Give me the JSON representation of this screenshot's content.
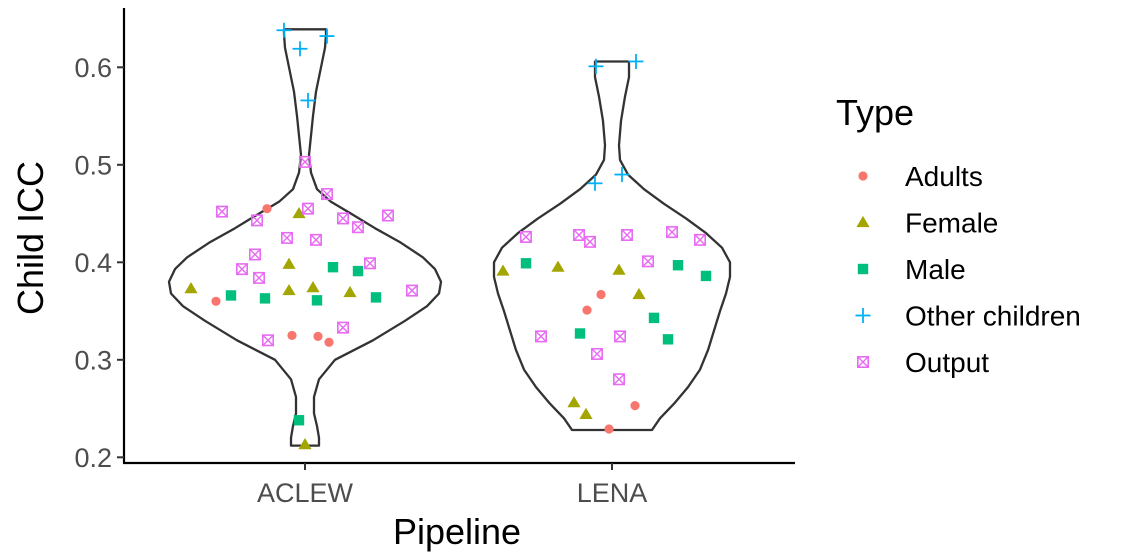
{
  "chart_data": {
    "type": "violin",
    "xlabel": "Pipeline",
    "ylabel": "Child ICC",
    "categories": [
      "ACLEW",
      "LENA"
    ],
    "ylim": [
      0.19,
      0.665
    ],
    "yticks": [
      0.2,
      0.3,
      0.4,
      0.5,
      0.6
    ],
    "ytick_labels": [
      "0.2",
      "0.3",
      "0.4",
      "0.5",
      "0.6"
    ],
    "legend": {
      "title": "Type",
      "position": "right",
      "entries": [
        {
          "name": "Adults",
          "color": "#F8766D",
          "shape": "circle"
        },
        {
          "name": "Female",
          "color": "#A3A500",
          "shape": "triangle"
        },
        {
          "name": "Male",
          "color": "#00BF7D",
          "shape": "square"
        },
        {
          "name": "Other children",
          "color": "#00B0F6",
          "shape": "plus"
        },
        {
          "name": "Output",
          "color": "#E76BF3",
          "shape": "boxcross"
        }
      ]
    },
    "violins": [
      {
        "category": "ACLEW",
        "ymin": 0.212,
        "ymax": 0.639
      },
      {
        "category": "LENA",
        "ymin": 0.228,
        "ymax": 0.606
      }
    ],
    "points": {
      "Adults": [
        {
          "x": "ACLEW",
          "y": 0.36
        },
        {
          "x": "ACLEW",
          "y": 0.455
        },
        {
          "x": "ACLEW",
          "y": 0.325
        },
        {
          "x": "ACLEW",
          "y": 0.324
        },
        {
          "x": "ACLEW",
          "y": 0.318
        },
        {
          "x": "LENA",
          "y": 0.351
        },
        {
          "x": "LENA",
          "y": 0.367
        },
        {
          "x": "LENA",
          "y": 0.253
        },
        {
          "x": "LENA",
          "y": 0.229
        }
      ],
      "Female": [
        {
          "x": "ACLEW",
          "y": 0.373
        },
        {
          "x": "ACLEW",
          "y": 0.45
        },
        {
          "x": "ACLEW",
          "y": 0.398
        },
        {
          "x": "ACLEW",
          "y": 0.371
        },
        {
          "x": "ACLEW",
          "y": 0.374
        },
        {
          "x": "ACLEW",
          "y": 0.369
        },
        {
          "x": "ACLEW",
          "y": 0.213
        },
        {
          "x": "LENA",
          "y": 0.391
        },
        {
          "x": "LENA",
          "y": 0.395
        },
        {
          "x": "LENA",
          "y": 0.392
        },
        {
          "x": "LENA",
          "y": 0.367
        },
        {
          "x": "LENA",
          "y": 0.256
        },
        {
          "x": "LENA",
          "y": 0.244
        }
      ],
      "Male": [
        {
          "x": "ACLEW",
          "y": 0.366
        },
        {
          "x": "ACLEW",
          "y": 0.363
        },
        {
          "x": "ACLEW",
          "y": 0.361
        },
        {
          "x": "ACLEW",
          "y": 0.395
        },
        {
          "x": "ACLEW",
          "y": 0.391
        },
        {
          "x": "ACLEW",
          "y": 0.364
        },
        {
          "x": "ACLEW",
          "y": 0.238
        },
        {
          "x": "LENA",
          "y": 0.399
        },
        {
          "x": "LENA",
          "y": 0.327
        },
        {
          "x": "LENA",
          "y": 0.343
        },
        {
          "x": "LENA",
          "y": 0.321
        },
        {
          "x": "LENA",
          "y": 0.397
        },
        {
          "x": "LENA",
          "y": 0.386
        }
      ],
      "Other children": [
        {
          "x": "ACLEW",
          "y": 0.638
        },
        {
          "x": "ACLEW",
          "y": 0.619
        },
        {
          "x": "ACLEW",
          "y": 0.632
        },
        {
          "x": "ACLEW",
          "y": 0.566
        },
        {
          "x": "LENA",
          "y": 0.601
        },
        {
          "x": "LENA",
          "y": 0.606
        },
        {
          "x": "LENA",
          "y": 0.481
        },
        {
          "x": "LENA",
          "y": 0.49
        }
      ],
      "Output": [
        {
          "x": "ACLEW",
          "y": 0.452
        },
        {
          "x": "ACLEW",
          "y": 0.503
        },
        {
          "x": "ACLEW",
          "y": 0.443
        },
        {
          "x": "ACLEW",
          "y": 0.455
        },
        {
          "x": "ACLEW",
          "y": 0.47
        },
        {
          "x": "ACLEW",
          "y": 0.425
        },
        {
          "x": "ACLEW",
          "y": 0.423
        },
        {
          "x": "ACLEW",
          "y": 0.445
        },
        {
          "x": "ACLEW",
          "y": 0.436
        },
        {
          "x": "ACLEW",
          "y": 0.448
        },
        {
          "x": "ACLEW",
          "y": 0.408
        },
        {
          "x": "ACLEW",
          "y": 0.393
        },
        {
          "x": "ACLEW",
          "y": 0.384
        },
        {
          "x": "ACLEW",
          "y": 0.399
        },
        {
          "x": "ACLEW",
          "y": 0.371
        },
        {
          "x": "ACLEW",
          "y": 0.333
        },
        {
          "x": "ACLEW",
          "y": 0.32
        },
        {
          "x": "LENA",
          "y": 0.426
        },
        {
          "x": "LENA",
          "y": 0.428
        },
        {
          "x": "LENA",
          "y": 0.421
        },
        {
          "x": "LENA",
          "y": 0.428
        },
        {
          "x": "LENA",
          "y": 0.431
        },
        {
          "x": "LENA",
          "y": 0.423
        },
        {
          "x": "LENA",
          "y": 0.401
        },
        {
          "x": "LENA",
          "y": 0.324
        },
        {
          "x": "LENA",
          "y": 0.324
        },
        {
          "x": "LENA",
          "y": 0.306
        },
        {
          "x": "LENA",
          "y": 0.28
        }
      ]
    }
  }
}
